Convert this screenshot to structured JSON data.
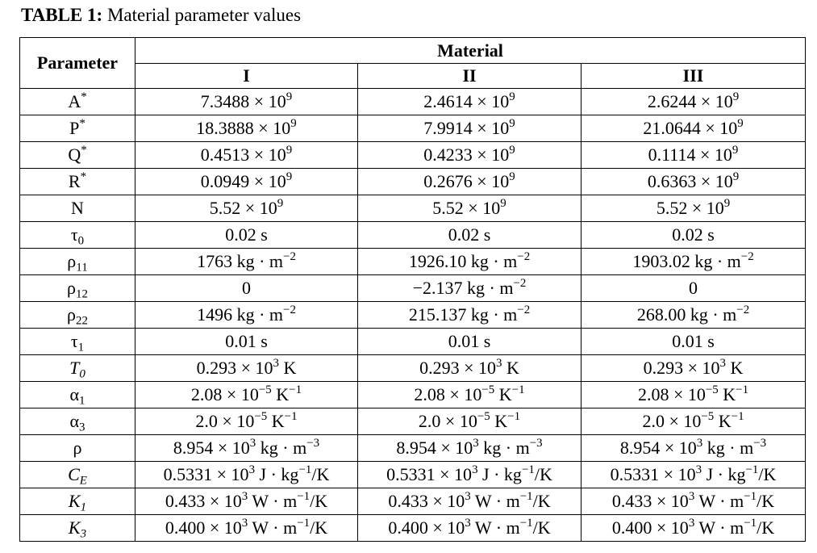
{
  "caption": {
    "label": "TABLE 1:",
    "text": " Material parameter values"
  },
  "header": {
    "parameter": "Parameter",
    "material": "Material",
    "columns": [
      "I",
      "II",
      "III"
    ]
  },
  "rows": [
    {
      "symbol": "A",
      "sup": "*",
      "sub": "",
      "italic": false,
      "values": [
        {
          "m": "7.3488 × 10",
          "e": "9",
          "u": "",
          "ue": "",
          "t": ""
        },
        {
          "m": "2.4614 × 10",
          "e": "9",
          "u": "",
          "ue": "",
          "t": ""
        },
        {
          "m": "2.6244 × 10",
          "e": "9",
          "u": "",
          "ue": "",
          "t": ""
        }
      ]
    },
    {
      "symbol": "P",
      "sup": "*",
      "sub": "",
      "italic": false,
      "values": [
        {
          "m": "18.3888 × 10",
          "e": "9",
          "u": "",
          "ue": "",
          "t": ""
        },
        {
          "m": "7.9914 × 10",
          "e": "9",
          "u": "",
          "ue": "",
          "t": ""
        },
        {
          "m": "21.0644 × 10",
          "e": "9",
          "u": "",
          "ue": "",
          "t": ""
        }
      ]
    },
    {
      "symbol": "Q",
      "sup": "*",
      "sub": "",
      "italic": false,
      "values": [
        {
          "m": "0.4513 × 10",
          "e": "9",
          "u": "",
          "ue": "",
          "t": ""
        },
        {
          "m": "0.4233 × 10",
          "e": "9",
          "u": "",
          "ue": "",
          "t": ""
        },
        {
          "m": "0.1114 × 10",
          "e": "9",
          "u": "",
          "ue": "",
          "t": ""
        }
      ]
    },
    {
      "symbol": "R",
      "sup": "*",
      "sub": "",
      "italic": false,
      "values": [
        {
          "m": "0.0949 × 10",
          "e": "9",
          "u": "",
          "ue": "",
          "t": ""
        },
        {
          "m": "0.2676 × 10",
          "e": "9",
          "u": "",
          "ue": "",
          "t": ""
        },
        {
          "m": "0.6363 × 10",
          "e": "9",
          "u": "",
          "ue": "",
          "t": ""
        }
      ]
    },
    {
      "symbol": "N",
      "sup": "",
      "sub": "",
      "italic": false,
      "values": [
        {
          "m": "5.52 × 10",
          "e": "9",
          "u": "",
          "ue": "",
          "t": ""
        },
        {
          "m": "5.52 × 10",
          "e": "9",
          "u": "",
          "ue": "",
          "t": ""
        },
        {
          "m": "5.52 × 10",
          "e": "9",
          "u": "",
          "ue": "",
          "t": ""
        }
      ]
    },
    {
      "symbol": "τ",
      "sup": "",
      "sub": "0",
      "italic": false,
      "values": [
        {
          "m": "0.02 s",
          "e": "",
          "u": "",
          "ue": "",
          "t": ""
        },
        {
          "m": "0.02 s",
          "e": "",
          "u": "",
          "ue": "",
          "t": ""
        },
        {
          "m": "0.02 s",
          "e": "",
          "u": "",
          "ue": "",
          "t": ""
        }
      ]
    },
    {
      "symbol": "ρ",
      "sup": "",
      "sub": "11",
      "italic": false,
      "values": [
        {
          "m": "1763 kg · m",
          "e": "−2",
          "u": "",
          "ue": "",
          "t": ""
        },
        {
          "m": "1926.10 kg · m",
          "e": "−2",
          "u": "",
          "ue": "",
          "t": ""
        },
        {
          "m": "1903.02 kg · m",
          "e": "−2",
          "u": "",
          "ue": "",
          "t": ""
        }
      ]
    },
    {
      "symbol": "ρ",
      "sup": "",
      "sub": "12",
      "italic": false,
      "values": [
        {
          "m": "0",
          "e": "",
          "u": "",
          "ue": "",
          "t": ""
        },
        {
          "m": "−2.137 kg · m",
          "e": "−2",
          "u": "",
          "ue": "",
          "t": ""
        },
        {
          "m": "0",
          "e": "",
          "u": "",
          "ue": "",
          "t": ""
        }
      ]
    },
    {
      "symbol": "ρ",
      "sup": "",
      "sub": "22",
      "italic": false,
      "values": [
        {
          "m": "1496 kg · m",
          "e": "−2",
          "u": "",
          "ue": "",
          "t": ""
        },
        {
          "m": "215.137 kg · m",
          "e": "−2",
          "u": "",
          "ue": "",
          "t": ""
        },
        {
          "m": "268.00 kg · m",
          "e": "−2",
          "u": "",
          "ue": "",
          "t": ""
        }
      ]
    },
    {
      "symbol": "τ",
      "sup": "",
      "sub": "1",
      "italic": false,
      "values": [
        {
          "m": "0.01 s",
          "e": "",
          "u": "",
          "ue": "",
          "t": ""
        },
        {
          "m": "0.01 s",
          "e": "",
          "u": "",
          "ue": "",
          "t": ""
        },
        {
          "m": "0.01 s",
          "e": "",
          "u": "",
          "ue": "",
          "t": ""
        }
      ]
    },
    {
      "symbol": "T",
      "sup": "",
      "sub": "0",
      "italic": true,
      "values": [
        {
          "m": "0.293 × 10",
          "e": "3",
          "u": " K",
          "ue": "",
          "t": ""
        },
        {
          "m": "0.293 × 10",
          "e": "3",
          "u": " K",
          "ue": "",
          "t": ""
        },
        {
          "m": "0.293 × 10",
          "e": "3",
          "u": " K",
          "ue": "",
          "t": ""
        }
      ]
    },
    {
      "symbol": "α",
      "sup": "",
      "sub": "1",
      "italic": false,
      "values": [
        {
          "m": "2.08 × 10",
          "e": "−5",
          "u": " K",
          "ue": "−1",
          "t": ""
        },
        {
          "m": "2.08 × 10",
          "e": "−5",
          "u": " K",
          "ue": "−1",
          "t": ""
        },
        {
          "m": "2.08 × 10",
          "e": "−5",
          "u": " K",
          "ue": "−1",
          "t": ""
        }
      ]
    },
    {
      "symbol": "α",
      "sup": "",
      "sub": "3",
      "italic": false,
      "values": [
        {
          "m": "2.0 × 10",
          "e": "−5",
          "u": " K",
          "ue": "−1",
          "t": ""
        },
        {
          "m": "2.0 × 10",
          "e": "−5",
          "u": " K",
          "ue": "−1",
          "t": ""
        },
        {
          "m": "2.0 × 10",
          "e": "−5",
          "u": " K",
          "ue": "−1",
          "t": ""
        }
      ]
    },
    {
      "symbol": "ρ",
      "sup": "",
      "sub": "",
      "italic": false,
      "values": [
        {
          "m": "8.954 × 10",
          "e": "3",
          "u": " kg · m",
          "ue": "−3",
          "t": ""
        },
        {
          "m": "8.954 × 10",
          "e": "3",
          "u": " kg · m",
          "ue": "−3",
          "t": ""
        },
        {
          "m": "8.954 × 10",
          "e": "3",
          "u": " kg · m",
          "ue": "−3",
          "t": ""
        }
      ]
    },
    {
      "symbol": "C",
      "sup": "",
      "sub": "E",
      "italic": true,
      "values": [
        {
          "m": "0.5331 × 10",
          "e": "3",
          "u": " J · kg",
          "ue": "−1",
          "t": "/K"
        },
        {
          "m": "0.5331 × 10",
          "e": "3",
          "u": " J · kg",
          "ue": "−1",
          "t": "/K"
        },
        {
          "m": "0.5331 × 10",
          "e": "3",
          "u": " J · kg",
          "ue": "−1",
          "t": "/K"
        }
      ]
    },
    {
      "symbol": "K",
      "sup": "",
      "sub": "1",
      "italic": true,
      "values": [
        {
          "m": "0.433 × 10",
          "e": "3",
          "u": " W · m",
          "ue": "−1",
          "t": "/K"
        },
        {
          "m": "0.433 × 10",
          "e": "3",
          "u": " W · m",
          "ue": "−1",
          "t": "/K"
        },
        {
          "m": "0.433 × 10",
          "e": "3",
          "u": " W · m",
          "ue": "−1",
          "t": "/K"
        }
      ]
    },
    {
      "symbol": "K",
      "sup": "",
      "sub": "3",
      "italic": true,
      "values": [
        {
          "m": "0.400 × 10",
          "e": "3",
          "u": " W · m",
          "ue": "−1",
          "t": "/K"
        },
        {
          "m": "0.400 × 10",
          "e": "3",
          "u": " W · m",
          "ue": "−1",
          "t": "/K"
        },
        {
          "m": "0.400 × 10",
          "e": "3",
          "u": " W · m",
          "ue": "−1",
          "t": "/K"
        }
      ]
    }
  ]
}
